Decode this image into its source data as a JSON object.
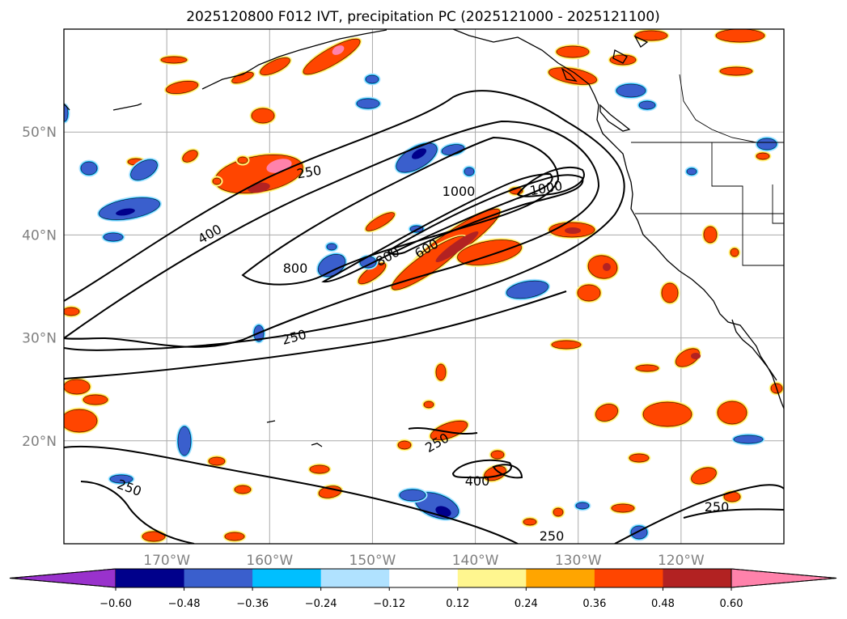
{
  "title": "2025120800 F012 IVT, precipitation PC (2025121000 - 2025121100)",
  "map": {
    "projection": "PlateCarree",
    "extent_lon": [
      -180,
      -110
    ],
    "extent_lat": [
      10,
      60
    ],
    "gridlines": true,
    "lat_labels": [
      "50°N",
      "40°N",
      "30°N",
      "20°N"
    ],
    "lon_labels": [
      "170°W",
      "160°W",
      "150°W",
      "140°W",
      "130°W",
      "120°W"
    ],
    "coast_color": "#000000",
    "contour_color": "#000000"
  },
  "ivt_contour_labels": [
    "250",
    "400",
    "800",
    "1000",
    "1000",
    "600",
    "800",
    "250",
    "250",
    "400",
    "250",
    "250",
    "250"
  ],
  "colorbar": {
    "ticks": [
      "−0.60",
      "−0.48",
      "−0.36",
      "−0.24",
      "−0.12",
      "0.12",
      "0.24",
      "0.36",
      "0.48",
      "0.60"
    ],
    "colors": [
      "#9932cc",
      "#00008b",
      "#3a5fcd",
      "#00bfff",
      "#b0e2ff",
      "#ffffff",
      "#fff68f",
      "#ffa500",
      "#ff4500",
      "#b22222",
      "#ff82ab"
    ],
    "extend": "both"
  }
}
